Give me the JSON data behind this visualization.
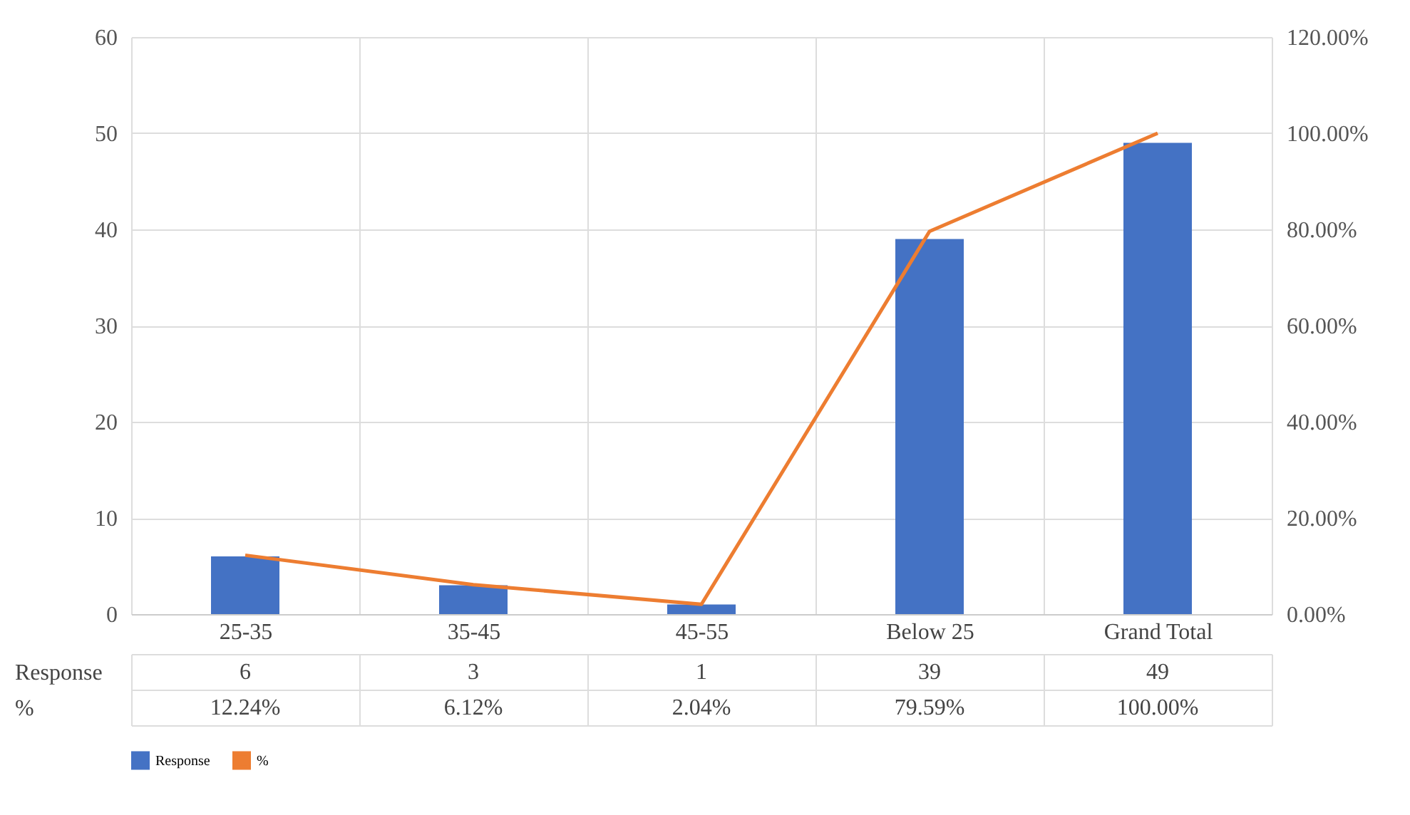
{
  "chart_data": {
    "type": "bar",
    "categories": [
      "25-35",
      "35-45",
      "45-55",
      "Below 25",
      "Grand Total"
    ],
    "series": [
      {
        "name": "Response",
        "color": "#4472c4",
        "values": [
          6,
          3,
          1,
          39,
          49
        ],
        "value_labels": [
          "6",
          "3",
          "1",
          "39",
          "49"
        ]
      },
      {
        "name": "%",
        "type": "line",
        "axis": "y2",
        "color": "#ed7d31",
        "values": [
          12.24,
          6.12,
          2.04,
          79.59,
          100
        ],
        "value_labels": [
          "12.24%",
          "6.12%",
          "2.04%",
          "79.59%",
          "100.00%"
        ]
      }
    ],
    "ylim": [
      0,
      60
    ],
    "yticks": [
      0,
      10,
      20,
      30,
      40,
      50,
      60
    ],
    "y2lim": [
      0,
      120
    ],
    "y2ticks": [
      {
        "value": 0,
        "label": "0.00%"
      },
      {
        "value": 20,
        "label": "20.00%"
      },
      {
        "value": 40,
        "label": "40.00%"
      },
      {
        "value": 60,
        "label": "60.00%"
      },
      {
        "value": 80,
        "label": "80.00%"
      },
      {
        "value": 100,
        "label": "100.00%"
      },
      {
        "value": 120,
        "label": "120.00%"
      }
    ],
    "grid": true,
    "legend": "bottom",
    "data_labels": true,
    "marker": "none",
    "line_style": "solid"
  }
}
